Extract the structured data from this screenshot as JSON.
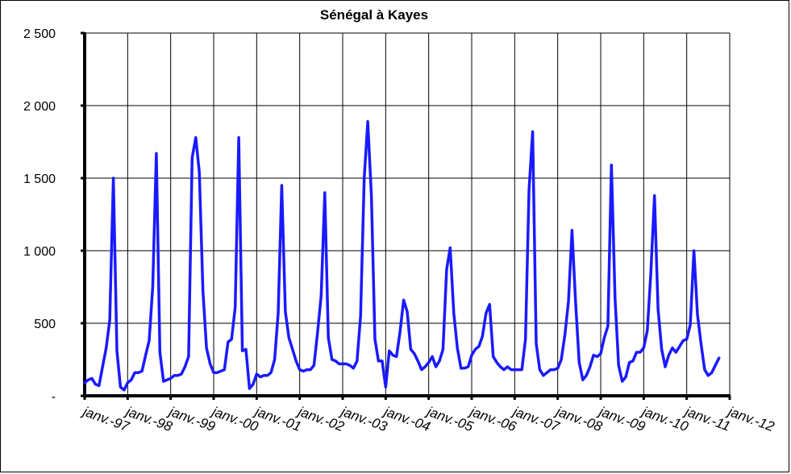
{
  "chart_data": {
    "type": "line",
    "title": "Sénégal à Kayes",
    "xlabel": "",
    "ylabel": "",
    "ylim": [
      0,
      2500
    ],
    "yticks": [
      {
        "value": 0,
        "label": "-"
      },
      {
        "value": 500,
        "label": "500"
      },
      {
        "value": 1000,
        "label": "1 000"
      },
      {
        "value": 1500,
        "label": "1 500"
      },
      {
        "value": 2000,
        "label": "2 000"
      },
      {
        "value": 2500,
        "label": "2 500"
      }
    ],
    "xticks": [
      "janv.-97",
      "janv.-98",
      "janv.-99",
      "janv.-00",
      "janv.-01",
      "janv.-02",
      "janv.-03",
      "janv.-04",
      "janv.-05",
      "janv.-06",
      "janv.-07",
      "janv.-08",
      "janv.-09",
      "janv.-10",
      "janv.-11",
      "janv.-12"
    ],
    "grid": true,
    "line_color": "#1a1aff",
    "series": [
      {
        "x_start": "janv.-97",
        "frequency": "monthly",
        "values": [
          90,
          110,
          120,
          80,
          70,
          200,
          330,
          520,
          1500,
          310,
          60,
          40,
          90,
          110,
          160,
          160,
          170,
          280,
          380,
          750,
          1670,
          300,
          100,
          110,
          120,
          140,
          140,
          150,
          200,
          270,
          1640,
          1780,
          1540,
          720,
          330,
          220,
          160,
          160,
          170,
          180,
          370,
          390,
          610,
          1780,
          310,
          320,
          50,
          80,
          150,
          130,
          140,
          140,
          160,
          250,
          570,
          1450,
          580,
          400,
          320,
          240,
          180,
          170,
          180,
          180,
          210,
          440,
          690,
          1400,
          400,
          250,
          240,
          220,
          220,
          220,
          210,
          190,
          240,
          550,
          1500,
          1890,
          1380,
          390,
          240,
          240,
          60,
          310,
          280,
          270,
          440,
          660,
          580,
          320,
          290,
          240,
          180,
          200,
          230,
          270,
          200,
          240,
          320,
          870,
          1020,
          570,
          330,
          190,
          190,
          200,
          280,
          320,
          340,
          410,
          570,
          630,
          270,
          230,
          200,
          180,
          200,
          180,
          180,
          180,
          180,
          390,
          1420,
          1820,
          360,
          180,
          140,
          160,
          180,
          180,
          190,
          250,
          420,
          650,
          1140,
          640,
          230,
          110,
          140,
          200,
          280,
          270,
          290,
          400,
          480,
          1590,
          670,
          210,
          100,
          130,
          230,
          240,
          300,
          300,
          330,
          450,
          850,
          1380,
          600,
          320,
          200,
          280,
          330,
          300,
          340,
          380,
          390,
          490,
          1000,
          560,
          360,
          180,
          140,
          160,
          210,
          260
        ]
      }
    ]
  }
}
